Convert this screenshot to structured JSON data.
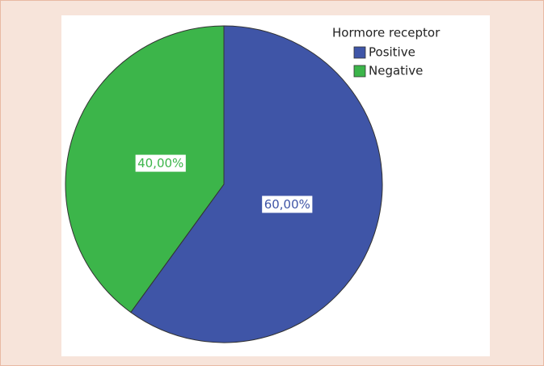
{
  "chart_data": {
    "type": "pie",
    "legend_title": "Hormore receptor",
    "categories": [
      "Positive",
      "Negative"
    ],
    "values": [
      60,
      40
    ],
    "value_labels": [
      "60,00%",
      "40,00%"
    ],
    "colors": [
      "#3f55a7",
      "#3cb54a"
    ],
    "legend_position": "upper right"
  }
}
